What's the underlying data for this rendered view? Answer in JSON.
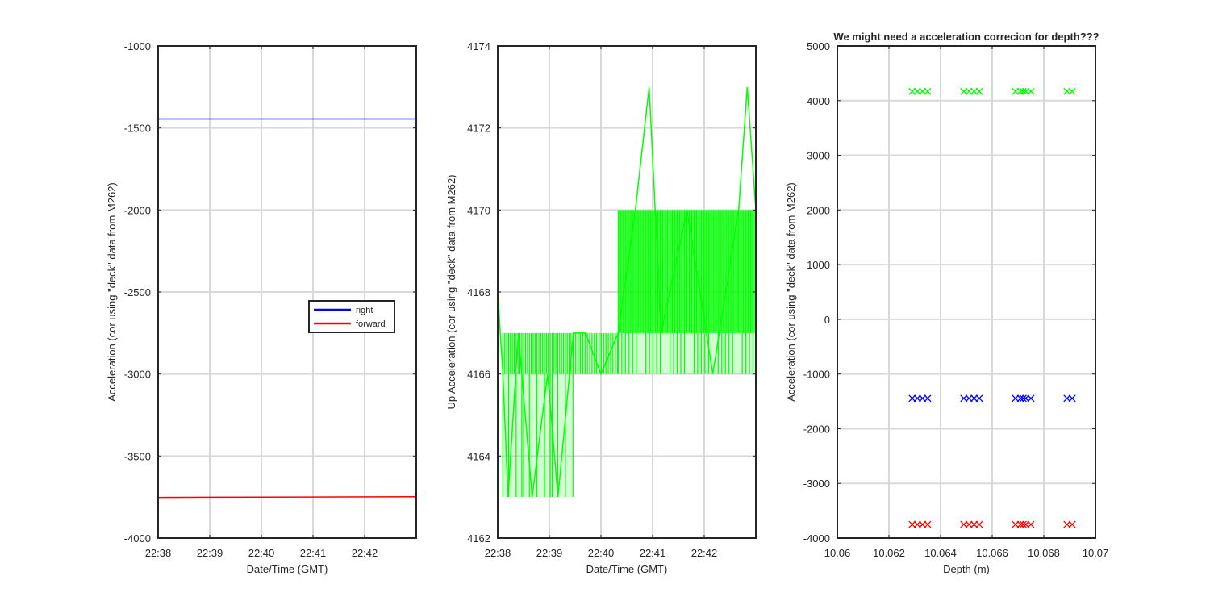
{
  "chart_data": [
    {
      "type": "line",
      "title": "",
      "xlabel": "Date/Time (GMT)",
      "ylabel": "Acceleration (cor using \"deck\" data from M262)",
      "xlim": [
        "22:38",
        "22:43"
      ],
      "ylim": [
        -4000,
        -1000
      ],
      "x_ticks": [
        "22:38",
        "22:39",
        "22:40",
        "22:41",
        "22:42"
      ],
      "y_ticks": [
        -1000,
        -1500,
        -2000,
        -2500,
        -3000,
        -3500,
        -4000
      ],
      "grid": true,
      "legend": "right, mid-height",
      "series": [
        {
          "name": "right",
          "color": "#0000ff",
          "x": [
            "22:38",
            "22:43"
          ],
          "values": [
            -1445,
            -1445
          ]
        },
        {
          "name": "forward",
          "color": "#ff0000",
          "x": [
            "22:38",
            "22:43"
          ],
          "values": [
            -3752,
            -3748
          ]
        }
      ]
    },
    {
      "type": "line",
      "title": "",
      "xlabel": "Date/Time (GMT)",
      "ylabel": "Up Acceleration (cor using \"deck\" data from M262)",
      "xlim": [
        "22:38",
        "22:43"
      ],
      "ylim": [
        4162,
        4174
      ],
      "x_ticks": [
        "22:38",
        "22:39",
        "22:40",
        "22:41",
        "22:42"
      ],
      "y_ticks": [
        4174,
        4172,
        4170,
        4168,
        4166,
        4164,
        4162
      ],
      "grid": true,
      "series": [
        {
          "name": "",
          "color": "#00ff00",
          "x": [
            "22:38:00",
            "22:38:06",
            "22:38:12",
            "22:38:24",
            "22:38:40",
            "22:38:58",
            "22:39:10",
            "22:39:28",
            "22:39:42",
            "22:40:00",
            "22:40:20",
            "22:40:40",
            "22:40:56",
            "22:41:10",
            "22:41:40",
            "22:42:10",
            "22:42:40",
            "22:42:50",
            "22:43:00"
          ],
          "values": [
            4168,
            4166,
            4163,
            4167,
            4163,
            4166,
            4163,
            4167,
            4167,
            4166,
            4167,
            4170,
            4173,
            4167,
            4170,
            4166,
            4170,
            4173,
            4170
          ]
        }
      ]
    },
    {
      "type": "scatter",
      "title": "We might need a acceleration correcion for depth???",
      "xlabel": "Depth (m)",
      "ylabel": "Acceleration (cor using \"deck\" data from M262)",
      "xlim": [
        10.06,
        10.07
      ],
      "ylim": [
        -4000,
        5000
      ],
      "x_ticks": [
        "10.06",
        "10.062",
        "10.064",
        "10.066",
        "10.068",
        "10.07"
      ],
      "y_ticks": [
        5000,
        4000,
        3000,
        2000,
        1000,
        0,
        -1000,
        -2000,
        -3000,
        -4000
      ],
      "grid": true,
      "series": [
        {
          "name": "",
          "color": "#00ff00",
          "x": [
            10.0629,
            10.0631,
            10.0633,
            10.0635,
            10.0649,
            10.0651,
            10.0653,
            10.0655,
            10.0669,
            10.0671,
            10.0672,
            10.0673,
            10.0675,
            10.0689,
            10.0691
          ],
          "values": [
            4170,
            4170,
            4170,
            4170,
            4170,
            4170,
            4170,
            4170,
            4170,
            4170,
            4170,
            4170,
            4170,
            4170,
            4170
          ]
        },
        {
          "name": "",
          "color": "#0000ff",
          "x": [
            10.0629,
            10.0631,
            10.0633,
            10.0635,
            10.0649,
            10.0651,
            10.0653,
            10.0655,
            10.0669,
            10.0671,
            10.0672,
            10.0673,
            10.0675,
            10.0689,
            10.0691
          ],
          "values": [
            -1445,
            -1445,
            -1445,
            -1445,
            -1445,
            -1445,
            -1445,
            -1445,
            -1445,
            -1445,
            -1445,
            -1445,
            -1445,
            -1445,
            -1445
          ]
        },
        {
          "name": "",
          "color": "#ff0000",
          "x": [
            10.0629,
            10.0631,
            10.0633,
            10.0635,
            10.0649,
            10.0651,
            10.0653,
            10.0655,
            10.0669,
            10.0671,
            10.0672,
            10.0673,
            10.0675,
            10.0689,
            10.0691
          ],
          "values": [
            -3750,
            -3750,
            -3750,
            -3750,
            -3750,
            -3750,
            -3750,
            -3750,
            -3750,
            -3750,
            -3750,
            -3750,
            -3750,
            -3750,
            -3750
          ]
        }
      ]
    }
  ]
}
